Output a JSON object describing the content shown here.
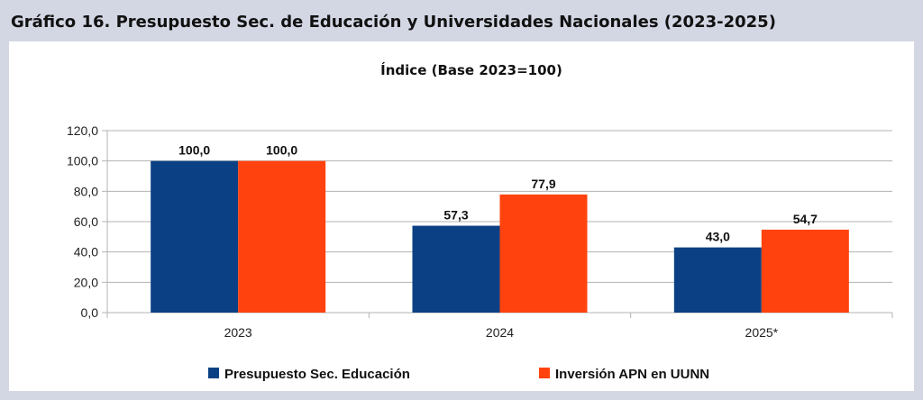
{
  "header": {
    "title": "Gráfico 16. Presupuesto Sec. de Educación y Universidades Nacionales (2023-2025)"
  },
  "chart_data": {
    "type": "bar",
    "title": "Índice (Base 2023=100)",
    "categories": [
      "2023",
      "2024",
      "2025*"
    ],
    "series": [
      {
        "name": "Presupuesto Sec. Educación",
        "values": [
          100.0,
          57.3,
          43.0
        ],
        "labels": [
          "100,0",
          "57,3",
          "43,0"
        ],
        "color": "#0b4184"
      },
      {
        "name": "Inversión APN en UUNN",
        "values": [
          100.0,
          77.9,
          54.7
        ],
        "labels": [
          "100,0",
          "77,9",
          "54,7"
        ],
        "color": "#ff420e"
      }
    ],
    "yticks": [
      "0,0",
      "20,0",
      "40,0",
      "60,0",
      "80,0",
      "100,0",
      "120,0"
    ],
    "ylim": [
      0,
      120
    ],
    "xlabel": "",
    "ylabel": "",
    "grid": true,
    "legend_position": "bottom"
  }
}
